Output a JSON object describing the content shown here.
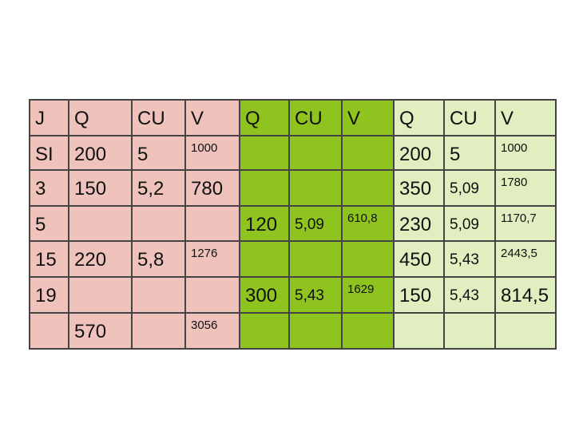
{
  "table": {
    "rows": [
      [
        "J",
        "Q",
        "CU",
        "V",
        "Q",
        "CU",
        "V",
        "Q",
        "CU",
        "V"
      ],
      [
        "SI",
        "200",
        "5",
        "1000",
        null,
        null,
        null,
        "200",
        "5",
        "1000"
      ],
      [
        "3",
        "150",
        "5,2",
        "780",
        null,
        null,
        null,
        "350",
        "5,09",
        "1780"
      ],
      [
        "5",
        null,
        null,
        null,
        "120",
        "5,09",
        "610,8",
        "230",
        "5,09",
        "1170,7"
      ],
      [
        "15",
        "220",
        "5,8",
        "1276",
        null,
        null,
        null,
        "450",
        "5,43",
        "2443,5"
      ],
      [
        "19",
        null,
        null,
        null,
        "300",
        "5,43",
        "1629",
        "150",
        "5,43",
        "814,5"
      ],
      [
        null,
        "570",
        null,
        "3056",
        null,
        null,
        null,
        null,
        null,
        null
      ]
    ]
  }
}
